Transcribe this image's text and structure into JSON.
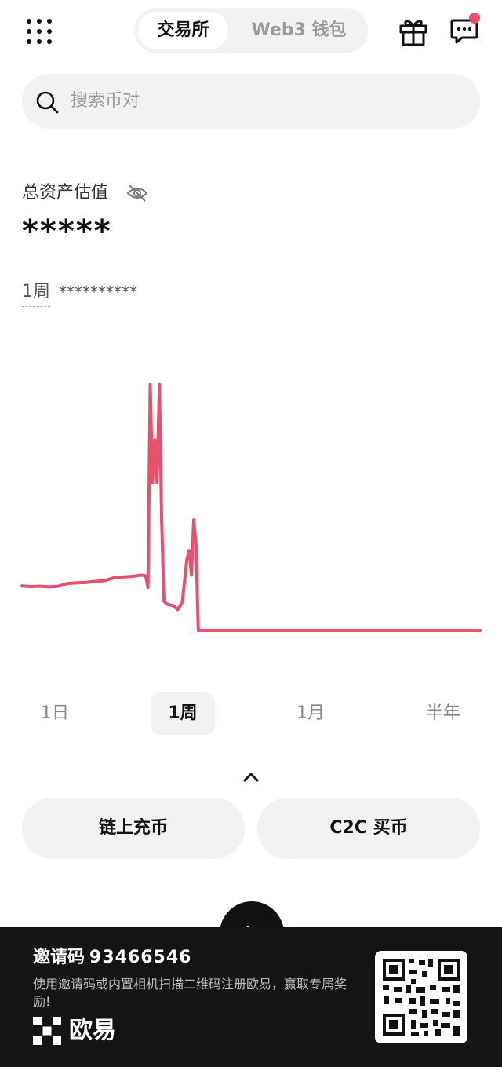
{
  "header": {
    "tabs": [
      {
        "label": "交易所",
        "active": true
      },
      {
        "label": "Web3 钱包",
        "active": false
      }
    ],
    "icons": [
      "grid-menu-icon",
      "gift-icon",
      "chat-icon"
    ],
    "notification_dot_color": "#e8506e"
  },
  "search": {
    "placeholder": "搜索币对"
  },
  "assets": {
    "label": "总资产估值",
    "value": "*****",
    "period_label": "1周",
    "period_change": "**********"
  },
  "chart_data": {
    "type": "line",
    "line_color": "#e8506e",
    "xlabel": "",
    "ylabel": "",
    "grid": false,
    "x": [
      0,
      0.02,
      0.04,
      0.06,
      0.08,
      0.1,
      0.12,
      0.14,
      0.16,
      0.18,
      0.2,
      0.22,
      0.24,
      0.26,
      0.27,
      0.275,
      0.28,
      0.285,
      0.29,
      0.295,
      0.3,
      0.305,
      0.31,
      0.315,
      0.32,
      0.33,
      0.34,
      0.35,
      0.36,
      0.365,
      0.37,
      0.375,
      0.38,
      0.385,
      0.39,
      0.4,
      0.5,
      0.6,
      0.7,
      0.8,
      0.9,
      1.0
    ],
    "values": [
      14.5,
      14.3,
      14.4,
      14.2,
      14.4,
      15.3,
      15.5,
      15.6,
      16.0,
      16.2,
      17.1,
      17.4,
      17.6,
      18.0,
      17.8,
      14.0,
      80.0,
      48.0,
      62.0,
      48.0,
      80.0,
      36.0,
      9.5,
      8.8,
      8.4,
      8.1,
      6.8,
      9.2,
      23.0,
      26.0,
      18.0,
      36.0,
      28.0,
      0,
      0,
      0,
      0,
      0,
      0,
      0,
      0,
      0
    ],
    "ylim": [
      0,
      82
    ]
  },
  "ranges": [
    {
      "label": "1日",
      "active": false
    },
    {
      "label": "1周",
      "active": true
    },
    {
      "label": "1月",
      "active": false
    },
    {
      "label": "半年",
      "active": false
    }
  ],
  "actions": {
    "deposit_label": "链上充币",
    "c2c_label": "C2C 买币"
  },
  "promo": {
    "invite_label": "邀请码",
    "invite_code": "93466546",
    "description": "使用邀请码或内置相机扫描二维码注册欧易，赢取专属奖励!",
    "brand": "欧易"
  }
}
